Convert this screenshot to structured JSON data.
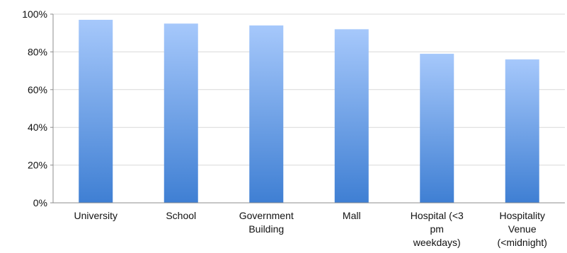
{
  "chart_data": {
    "type": "bar",
    "title": "",
    "xlabel": "",
    "ylabel": "",
    "categories": [
      [
        "University"
      ],
      [
        "School"
      ],
      [
        "Government",
        "Building"
      ],
      [
        "Mall"
      ],
      [
        "Hospital (<3",
        "pm",
        "weekdays)"
      ],
      [
        "Hospitality",
        "Venue",
        "(<midnight)"
      ]
    ],
    "values": [
      0.97,
      0.95,
      0.94,
      0.92,
      0.79,
      0.76
    ],
    "ylim": [
      0,
      1
    ],
    "yticks": [
      {
        "value": 0,
        "label": "0%"
      },
      {
        "value": 0.2,
        "label": "20%"
      },
      {
        "value": 0.4,
        "label": "40%"
      },
      {
        "value": 0.6,
        "label": "60%"
      },
      {
        "value": 0.8,
        "label": "80%"
      },
      {
        "value": 1,
        "label": "100%"
      }
    ],
    "grid": true,
    "legend": "none",
    "colors": {
      "bar_top": "#a6c8fb",
      "bar_bottom": "#3f7fd3"
    }
  }
}
